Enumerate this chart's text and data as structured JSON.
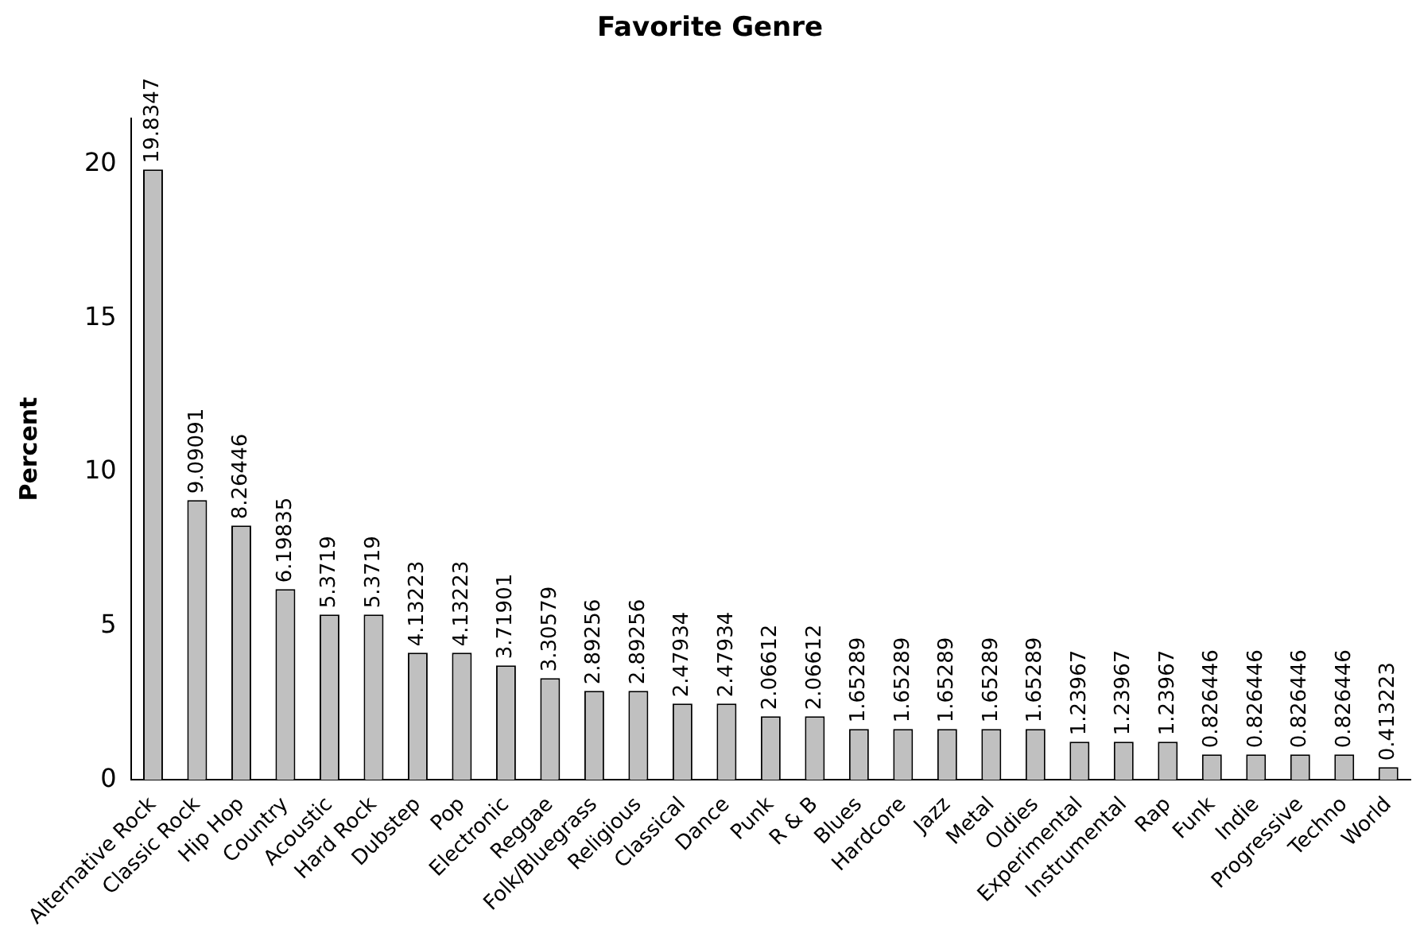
{
  "chart_data": {
    "type": "bar",
    "title": "Favorite Genre",
    "ylabel": "Percent",
    "categories": [
      "Alternative Rock",
      "Classic Rock",
      "Hip Hop",
      "Country",
      "Acoustic",
      "Hard Rock",
      "Dubstep",
      "Pop",
      "Electronic",
      "Reggae",
      "Folk/Bluegrass",
      "Religious",
      "Classical",
      "Dance",
      "Punk",
      "R & B",
      "Blues",
      "Hardcore",
      "Jazz",
      "Metal",
      "Oldies",
      "Experimental",
      "Instrumental",
      "Rap",
      "Funk",
      "Indie",
      "Progressive",
      "Techno",
      "World"
    ],
    "values": [
      19.8347,
      9.09091,
      8.26446,
      6.19835,
      5.3719,
      5.3719,
      4.13223,
      4.13223,
      3.71901,
      3.30579,
      2.89256,
      2.89256,
      2.47934,
      2.47934,
      2.06612,
      2.06612,
      1.65289,
      1.65289,
      1.65289,
      1.65289,
      1.65289,
      1.23967,
      1.23967,
      1.23967,
      0.826446,
      0.826446,
      0.826446,
      0.826446,
      0.413223
    ],
    "color": "#c0c0c0",
    "ylim": [
      0,
      21.5
    ],
    "yticks": [
      0,
      5,
      10,
      15,
      20
    ],
    "data_labels": true,
    "grid": false,
    "legend": false
  }
}
